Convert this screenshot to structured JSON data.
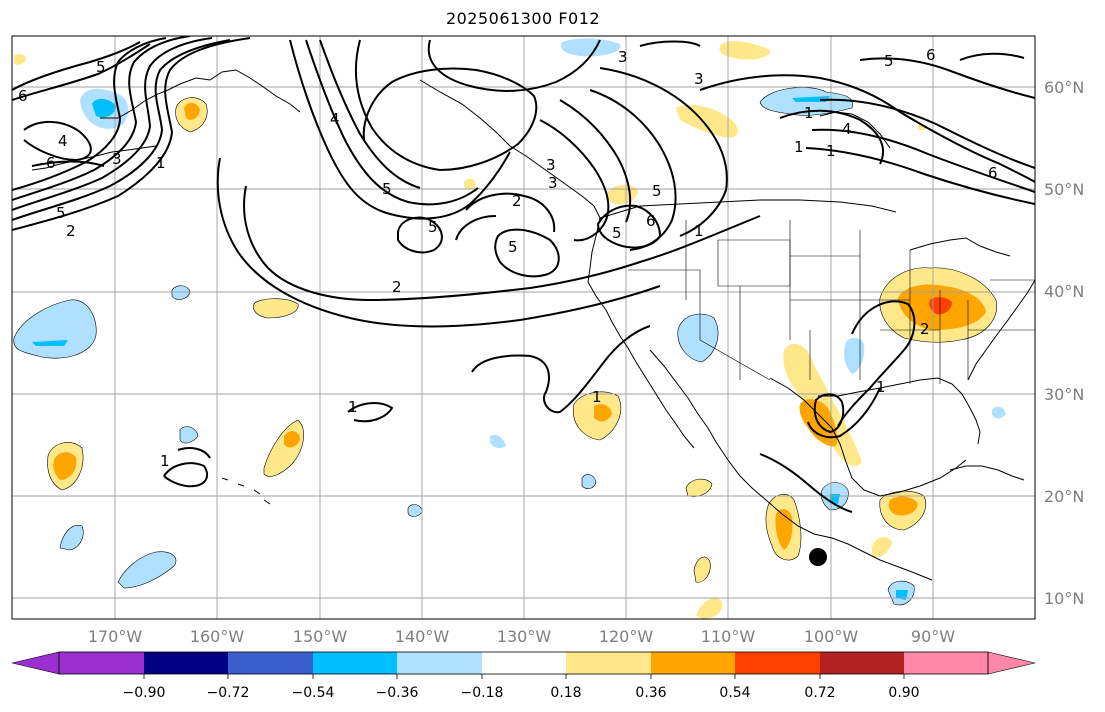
{
  "title": "2025061300 F012",
  "lat_labels": [
    "60°N",
    "50°N",
    "40°N",
    "30°N",
    "20°N",
    "10°N"
  ],
  "lon_labels": [
    "170°W",
    "160°W",
    "150°W",
    "140°W",
    "130°W",
    "120°W",
    "110°W",
    "100°W",
    "90°W"
  ],
  "contour_labels": [
    "6",
    "5",
    "4",
    "6",
    "3",
    "1",
    "5",
    "2",
    "5",
    "4",
    "3",
    "5",
    "5",
    "5",
    "2",
    "3",
    "6",
    "5",
    "1",
    "1",
    "2",
    "1",
    "1",
    "1",
    "3",
    "3",
    "5",
    "6",
    "4",
    "1",
    "6",
    "2",
    "1",
    "1"
  ],
  "colorbar": {
    "ticks": [
      "−0.90",
      "−0.72",
      "−0.54",
      "−0.36",
      "−0.18",
      "0.18",
      "0.36",
      "0.54",
      "0.72",
      "0.90"
    ],
    "colors": [
      "#9b30d0",
      "#000080",
      "#3a5fcd",
      "#00bfff",
      "#b0e0ff",
      "#ffffff",
      "#ffe88a",
      "#ffa500",
      "#ff4000",
      "#b22222",
      "#ff88aa"
    ]
  },
  "colors": {
    "pos_low": "#ffe88a",
    "pos_mid": "#ffa500",
    "pos_high": "#ff4000",
    "neg_low": "#b0e0ff",
    "neg_mid": "#00bfff",
    "grid": "#a0a0a0"
  },
  "marker": "black-dot"
}
